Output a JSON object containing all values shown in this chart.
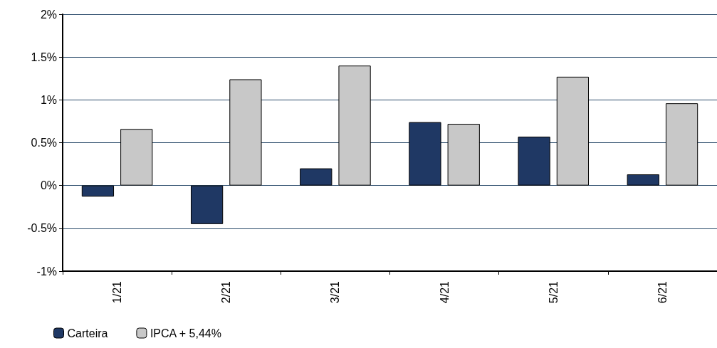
{
  "chart_data": {
    "type": "bar",
    "categories": [
      "1/21",
      "2/21",
      "3/21",
      "4/21",
      "5/21",
      "6/21"
    ],
    "series": [
      {
        "name": "Carteira",
        "color": "#1f3864",
        "values": [
          -0.13,
          -0.45,
          0.2,
          0.74,
          0.57,
          0.13
        ]
      },
      {
        "name": "IPCA + 5,44%",
        "color": "#c8c8c8",
        "values": [
          0.66,
          1.24,
          1.4,
          0.72,
          1.27,
          0.96
        ]
      }
    ],
    "ylim": [
      -1,
      2
    ],
    "yticks": [
      {
        "value": -1,
        "label": "-1%"
      },
      {
        "value": -0.5,
        "label": "-0.5%"
      },
      {
        "value": 0,
        "label": "0%"
      },
      {
        "value": 0.5,
        "label": "0.5%"
      },
      {
        "value": 1,
        "label": "1%"
      },
      {
        "value": 1.5,
        "label": "1.5%"
      },
      {
        "value": 2,
        "label": "2%"
      }
    ],
    "grid": "y",
    "legend": "bottom left"
  }
}
